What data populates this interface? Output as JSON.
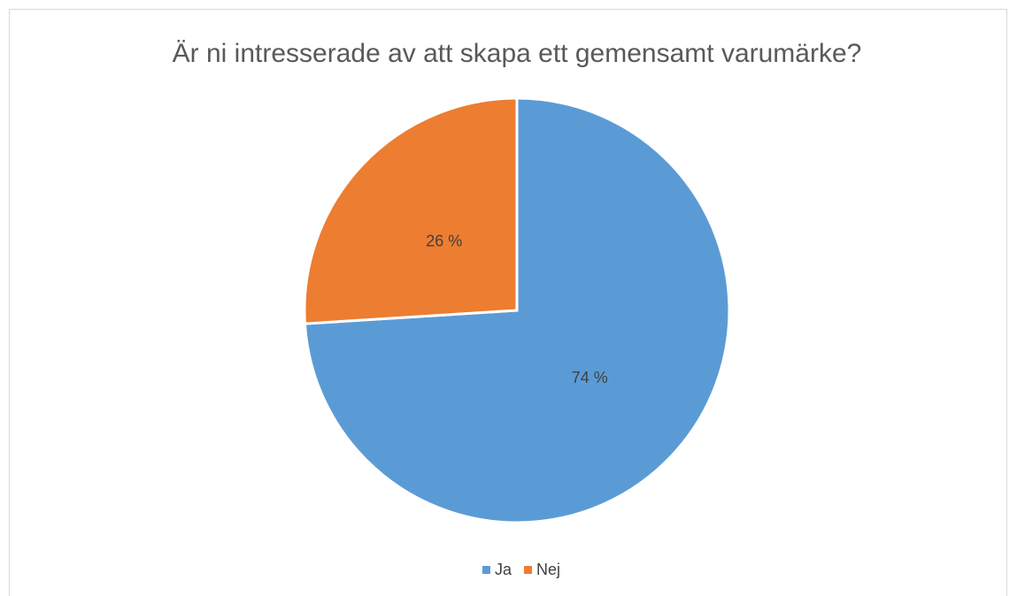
{
  "chart_data": {
    "type": "pie",
    "title": "Är ni intresserade av att skapa ett gemensamt varumärke?",
    "categories": [
      "Ja",
      "Nej"
    ],
    "values": [
      74,
      26
    ],
    "value_labels": [
      "74 %",
      "26 %"
    ],
    "colors": [
      "#5b9bd5",
      "#ed7d31"
    ],
    "legend": "bottom"
  }
}
